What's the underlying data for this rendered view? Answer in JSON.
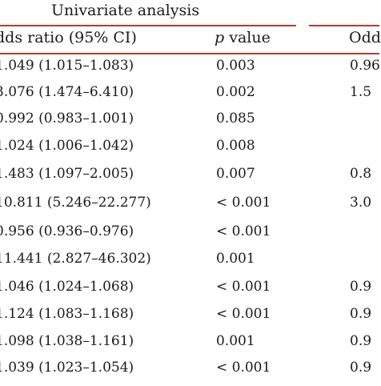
{
  "table": {
    "group_title": "Univariate analysis",
    "headers": {
      "odds_ratio": "dds ratio (95% CI)",
      "p_italic": "p",
      "p_rest": " value",
      "odds_ratio_multi": "Odd"
    },
    "rows": [
      {
        "or_ci": "1.049 (1.015–1.083)",
        "p": "0.003",
        "or2": "0.96"
      },
      {
        "or_ci": "3.076 (1.474–6.410)",
        "p": "0.002",
        "or2": "1.5"
      },
      {
        "or_ci": "0.992 (0.983–1.001)",
        "p": "0.085",
        "or2": ""
      },
      {
        "or_ci": "1.024 (1.006–1.042)",
        "p": "0.008",
        "or2": ""
      },
      {
        "or_ci": "1.483 (1.097–2.005)",
        "p": "0.007",
        "or2": "0.8"
      },
      {
        "or_ci": "10.811 (5.246–22.277)",
        "p": "< 0.001",
        "or2": "3.0"
      },
      {
        "or_ci": "0.956 (0.936–0.976)",
        "p": "< 0.001",
        "or2": ""
      },
      {
        "or_ci": "11.441 (2.827–46.302)",
        "p": "0.001",
        "or2": ""
      },
      {
        "or_ci": "1.046 (1.024–1.068)",
        "p": "< 0.001",
        "or2": "0.9"
      },
      {
        "or_ci": "1.124 (1.083–1.168)",
        "p": "< 0.001",
        "or2": "0.9"
      },
      {
        "or_ci": "1.098 (1.038–1.161)",
        "p": "0.001",
        "or2": "0.9"
      },
      {
        "or_ci": "1.039 (1.023–1.054)",
        "p": "< 0.001",
        "or2": "0.9"
      }
    ]
  }
}
